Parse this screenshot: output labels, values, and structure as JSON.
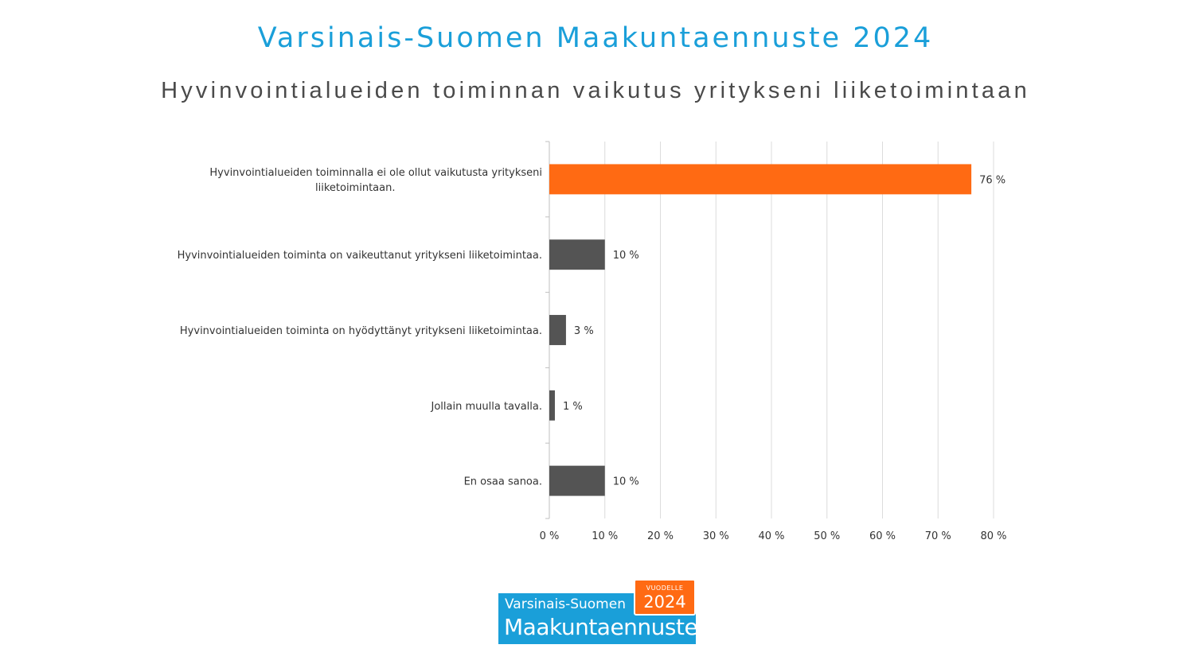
{
  "header": {
    "title": "Varsinais-Suomen Maakuntaennuste 2024",
    "subtitle": "Hyvinvointialueiden toiminnan vaikutus yritykseni liiketoimintaan"
  },
  "chart_data": {
    "type": "bar",
    "orientation": "horizontal",
    "categories": [
      [
        "Hyvinvointialueiden toiminnalla ei ole ollut vaikutusta yritykseni",
        "liiketoimintaan."
      ],
      [
        "Hyvinvointialueiden toiminta on vaikeuttanut yritykseni liiketoimintaa."
      ],
      [
        "Hyvinvointialueiden toiminta on hyödyttänyt yritykseni liiketoimintaa."
      ],
      [
        "Jollain muulla tavalla."
      ],
      [
        "En osaa sanoa."
      ]
    ],
    "values": [
      76,
      10,
      3,
      1,
      10
    ],
    "value_labels": [
      "76 %",
      "10 %",
      "3 %",
      "1 %",
      "10 %"
    ],
    "bar_colors": [
      "#ff6a13",
      "#545454",
      "#545454",
      "#545454",
      "#545454"
    ],
    "xlim": [
      0,
      80
    ],
    "x_ticks": [
      0,
      10,
      20,
      30,
      40,
      50,
      60,
      70,
      80
    ],
    "x_tick_labels": [
      "0 %",
      "10 %",
      "20 %",
      "30 %",
      "40 %",
      "50 %",
      "60 %",
      "70 %",
      "80 %"
    ],
    "grid": true,
    "legend": "none"
  },
  "logo": {
    "line1": "Varsinais-Suomen",
    "line2": "Maakuntaennuste",
    "badge_small": "VUODELLE",
    "badge_year": "2024",
    "colors": {
      "blue": "#1a9fd9",
      "orange": "#ff6a13"
    }
  }
}
